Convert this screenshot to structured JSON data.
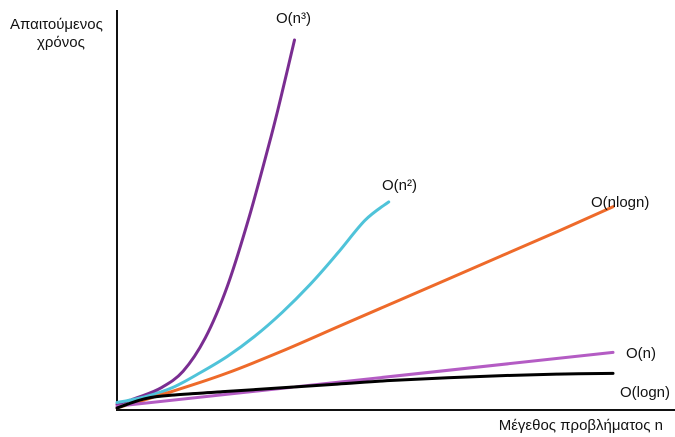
{
  "chart_data": {
    "type": "line",
    "title": "",
    "ylabel_lines": [
      "Απαιτούμενος",
      "χρόνος"
    ],
    "xlabel": "Μέγεθος προβλήματος n",
    "grid": false,
    "axis_ticks": false,
    "xlim": [
      0,
      10
    ],
    "ylim": [
      0,
      10
    ],
    "series": [
      {
        "name": "O(n³)",
        "color": "#7a2d91",
        "points": [
          [
            0,
            0.1
          ],
          [
            0.4,
            0.3
          ],
          [
            0.8,
            0.55
          ],
          [
            1.2,
            1.0
          ],
          [
            1.6,
            1.9
          ],
          [
            2.0,
            3.3
          ],
          [
            2.4,
            5.2
          ],
          [
            2.8,
            7.4
          ],
          [
            3.0,
            8.6
          ],
          [
            3.22,
            10.0
          ]
        ]
      },
      {
        "name": "O(n²)",
        "color": "#4fc3d9",
        "points": [
          [
            0,
            0.15
          ],
          [
            0.5,
            0.3
          ],
          [
            1.0,
            0.55
          ],
          [
            1.5,
            0.95
          ],
          [
            2.0,
            1.4
          ],
          [
            2.5,
            1.95
          ],
          [
            3.0,
            2.6
          ],
          [
            3.5,
            3.35
          ],
          [
            4.0,
            4.2
          ],
          [
            4.5,
            5.1
          ],
          [
            4.93,
            5.6
          ]
        ]
      },
      {
        "name": "O(nlogn)",
        "color": "#ee6a2a",
        "points": [
          [
            0,
            0.0
          ],
          [
            1.0,
            0.45
          ],
          [
            2.0,
            0.95
          ],
          [
            3.0,
            1.55
          ],
          [
            4.0,
            2.2
          ],
          [
            5.0,
            2.85
          ],
          [
            6.0,
            3.5
          ],
          [
            7.0,
            4.15
          ],
          [
            8.0,
            4.8
          ],
          [
            9.0,
            5.47
          ]
        ]
      },
      {
        "name": "O(n)",
        "color": "#b45cc4",
        "points": [
          [
            0,
            0.05
          ],
          [
            9.0,
            1.51
          ]
        ]
      },
      {
        "name": "O(logn)",
        "color": "#000000",
        "points": [
          [
            0,
            0.0
          ],
          [
            0.5,
            0.25
          ],
          [
            1.0,
            0.35
          ],
          [
            2.0,
            0.45
          ],
          [
            3.0,
            0.55
          ],
          [
            4.0,
            0.65
          ],
          [
            5.0,
            0.75
          ],
          [
            6.0,
            0.82
          ],
          [
            7.0,
            0.88
          ],
          [
            8.0,
            0.92
          ],
          [
            9.0,
            0.47
          ]
        ]
      }
    ]
  }
}
